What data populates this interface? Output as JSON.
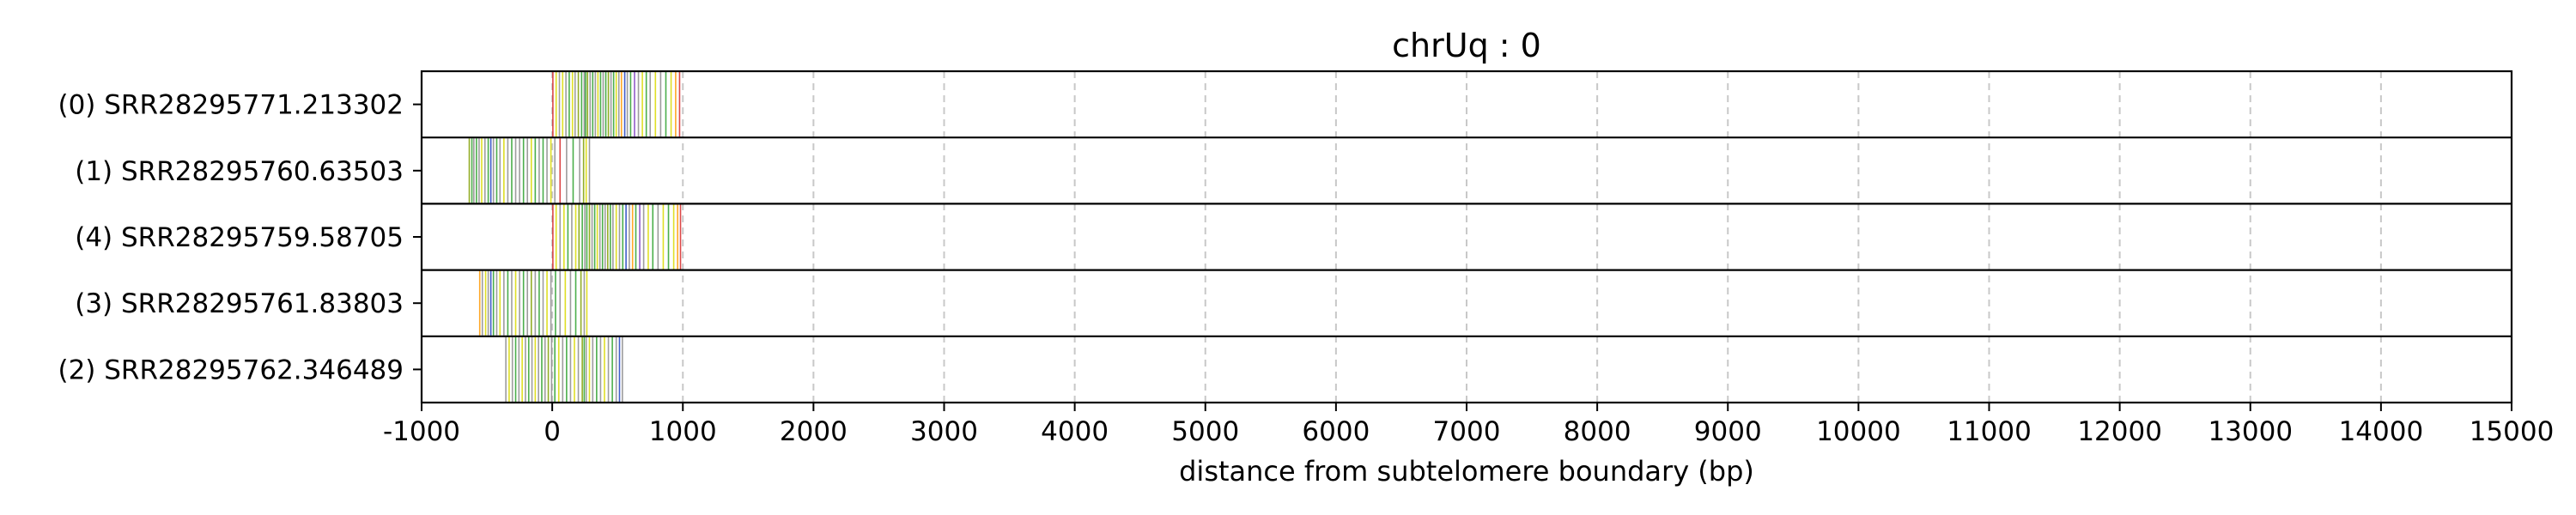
{
  "chart_data": {
    "type": "read-track-plot",
    "title": "chrUq : 0",
    "xlabel": "distance from subtelomere boundary (bp)",
    "ylabel": "",
    "xlim": [
      -1000,
      15000
    ],
    "x_ticks": [
      -1000,
      0,
      1000,
      2000,
      3000,
      4000,
      5000,
      6000,
      7000,
      8000,
      9000,
      10000,
      11000,
      12000,
      13000,
      14000,
      15000
    ],
    "grid": "vertical-dashed",
    "colors": {
      "gray": "#8c8c8c",
      "green": "#2ca02c",
      "olive": "#7f9f00",
      "yellow": "#d9d900",
      "blue": "#1f3fbf",
      "red": "#d62728",
      "orange": "#ff9900",
      "purple": "#7f3fbf",
      "grid": "#c8c8c8"
    },
    "tracks": [
      {
        "label": "(0) SRR28295771.213302",
        "start": 0,
        "end": 980,
        "marks": [
          {
            "x": 5,
            "c": "red"
          },
          {
            "x": 30,
            "c": "yellow"
          },
          {
            "x": 55,
            "c": "gray"
          },
          {
            "x": 80,
            "c": "yellow"
          },
          {
            "x": 105,
            "c": "gray"
          },
          {
            "x": 130,
            "c": "green"
          },
          {
            "x": 155,
            "c": "yellow"
          },
          {
            "x": 175,
            "c": "gray"
          },
          {
            "x": 200,
            "c": "olive"
          },
          {
            "x": 225,
            "c": "green"
          },
          {
            "x": 245,
            "c": "gray"
          },
          {
            "x": 255,
            "c": "green"
          },
          {
            "x": 270,
            "c": "olive"
          },
          {
            "x": 290,
            "c": "gray"
          },
          {
            "x": 310,
            "c": "green"
          },
          {
            "x": 330,
            "c": "gray"
          },
          {
            "x": 350,
            "c": "yellow"
          },
          {
            "x": 370,
            "c": "green"
          },
          {
            "x": 390,
            "c": "gray"
          },
          {
            "x": 410,
            "c": "green"
          },
          {
            "x": 430,
            "c": "olive"
          },
          {
            "x": 450,
            "c": "gray"
          },
          {
            "x": 470,
            "c": "green"
          },
          {
            "x": 490,
            "c": "yellow"
          },
          {
            "x": 510,
            "c": "gray"
          },
          {
            "x": 530,
            "c": "orange"
          },
          {
            "x": 555,
            "c": "blue"
          },
          {
            "x": 575,
            "c": "gray"
          },
          {
            "x": 600,
            "c": "green"
          },
          {
            "x": 630,
            "c": "purple"
          },
          {
            "x": 660,
            "c": "gray"
          },
          {
            "x": 690,
            "c": "yellow"
          },
          {
            "x": 720,
            "c": "green"
          },
          {
            "x": 750,
            "c": "gray"
          },
          {
            "x": 790,
            "c": "yellow"
          },
          {
            "x": 830,
            "c": "gray"
          },
          {
            "x": 870,
            "c": "green"
          },
          {
            "x": 910,
            "c": "yellow"
          },
          {
            "x": 945,
            "c": "orange"
          },
          {
            "x": 975,
            "c": "red"
          }
        ]
      },
      {
        "label": "(1) SRR28295760.63503",
        "start": -640,
        "end": 290,
        "marks": [
          {
            "x": -635,
            "c": "olive"
          },
          {
            "x": -615,
            "c": "green"
          },
          {
            "x": -600,
            "c": "gray"
          },
          {
            "x": -580,
            "c": "green"
          },
          {
            "x": -560,
            "c": "gray"
          },
          {
            "x": -540,
            "c": "yellow"
          },
          {
            "x": -515,
            "c": "gray"
          },
          {
            "x": -490,
            "c": "green"
          },
          {
            "x": -470,
            "c": "blue"
          },
          {
            "x": -450,
            "c": "gray"
          },
          {
            "x": -425,
            "c": "green"
          },
          {
            "x": -400,
            "c": "gray"
          },
          {
            "x": -370,
            "c": "yellow"
          },
          {
            "x": -340,
            "c": "gray"
          },
          {
            "x": -310,
            "c": "green"
          },
          {
            "x": -280,
            "c": "gray"
          },
          {
            "x": -250,
            "c": "gray"
          },
          {
            "x": -220,
            "c": "green"
          },
          {
            "x": -190,
            "c": "gray"
          },
          {
            "x": -160,
            "c": "yellow"
          },
          {
            "x": -130,
            "c": "green"
          },
          {
            "x": -100,
            "c": "gray"
          },
          {
            "x": -70,
            "c": "green"
          },
          {
            "x": -40,
            "c": "gray"
          },
          {
            "x": -10,
            "c": "yellow"
          },
          {
            "x": 20,
            "c": "gray"
          },
          {
            "x": 60,
            "c": "red"
          },
          {
            "x": 110,
            "c": "gray"
          },
          {
            "x": 160,
            "c": "green"
          },
          {
            "x": 210,
            "c": "gray"
          },
          {
            "x": 240,
            "c": "olive"
          },
          {
            "x": 260,
            "c": "yellow"
          },
          {
            "x": 285,
            "c": "gray"
          }
        ]
      },
      {
        "label": "(4) SRR28295759.58705",
        "start": 0,
        "end": 985,
        "marks": [
          {
            "x": 5,
            "c": "red"
          },
          {
            "x": 30,
            "c": "yellow"
          },
          {
            "x": 60,
            "c": "gray"
          },
          {
            "x": 90,
            "c": "yellow"
          },
          {
            "x": 120,
            "c": "green"
          },
          {
            "x": 150,
            "c": "gray"
          },
          {
            "x": 180,
            "c": "yellow"
          },
          {
            "x": 205,
            "c": "olive"
          },
          {
            "x": 230,
            "c": "green"
          },
          {
            "x": 250,
            "c": "gray"
          },
          {
            "x": 265,
            "c": "green"
          },
          {
            "x": 285,
            "c": "olive"
          },
          {
            "x": 305,
            "c": "gray"
          },
          {
            "x": 325,
            "c": "green"
          },
          {
            "x": 345,
            "c": "yellow"
          },
          {
            "x": 365,
            "c": "gray"
          },
          {
            "x": 385,
            "c": "green"
          },
          {
            "x": 405,
            "c": "gray"
          },
          {
            "x": 425,
            "c": "olive"
          },
          {
            "x": 445,
            "c": "green"
          },
          {
            "x": 465,
            "c": "gray"
          },
          {
            "x": 490,
            "c": "yellow"
          },
          {
            "x": 515,
            "c": "gray"
          },
          {
            "x": 540,
            "c": "green"
          },
          {
            "x": 565,
            "c": "blue"
          },
          {
            "x": 590,
            "c": "gray"
          },
          {
            "x": 615,
            "c": "orange"
          },
          {
            "x": 640,
            "c": "green"
          },
          {
            "x": 670,
            "c": "purple"
          },
          {
            "x": 700,
            "c": "gray"
          },
          {
            "x": 735,
            "c": "yellow"
          },
          {
            "x": 770,
            "c": "green"
          },
          {
            "x": 810,
            "c": "gray"
          },
          {
            "x": 850,
            "c": "yellow"
          },
          {
            "x": 890,
            "c": "green"
          },
          {
            "x": 930,
            "c": "yellow"
          },
          {
            "x": 960,
            "c": "orange"
          },
          {
            "x": 982,
            "c": "red"
          }
        ]
      },
      {
        "label": "(3) SRR28295761.83803",
        "start": -560,
        "end": 270,
        "marks": [
          {
            "x": -555,
            "c": "orange"
          },
          {
            "x": -535,
            "c": "gray"
          },
          {
            "x": -510,
            "c": "yellow"
          },
          {
            "x": -490,
            "c": "gray"
          },
          {
            "x": -470,
            "c": "blue"
          },
          {
            "x": -450,
            "c": "green"
          },
          {
            "x": -425,
            "c": "gray"
          },
          {
            "x": -400,
            "c": "yellow"
          },
          {
            "x": -370,
            "c": "gray"
          },
          {
            "x": -340,
            "c": "green"
          },
          {
            "x": -310,
            "c": "gray"
          },
          {
            "x": -280,
            "c": "yellow"
          },
          {
            "x": -250,
            "c": "gray"
          },
          {
            "x": -220,
            "c": "green"
          },
          {
            "x": -190,
            "c": "gray"
          },
          {
            "x": -160,
            "c": "olive"
          },
          {
            "x": -130,
            "c": "gray"
          },
          {
            "x": -100,
            "c": "green"
          },
          {
            "x": -70,
            "c": "gray"
          },
          {
            "x": -40,
            "c": "yellow"
          },
          {
            "x": -10,
            "c": "gray"
          },
          {
            "x": 25,
            "c": "green"
          },
          {
            "x": 60,
            "c": "gray"
          },
          {
            "x": 100,
            "c": "yellow"
          },
          {
            "x": 140,
            "c": "gray"
          },
          {
            "x": 180,
            "c": "green"
          },
          {
            "x": 220,
            "c": "olive"
          },
          {
            "x": 245,
            "c": "gray"
          },
          {
            "x": 265,
            "c": "yellow"
          }
        ]
      },
      {
        "label": "(2) SRR28295762.346489",
        "start": -360,
        "end": 540,
        "marks": [
          {
            "x": -355,
            "c": "gray"
          },
          {
            "x": -330,
            "c": "yellow"
          },
          {
            "x": -305,
            "c": "gray"
          },
          {
            "x": -280,
            "c": "green"
          },
          {
            "x": -255,
            "c": "gray"
          },
          {
            "x": -230,
            "c": "yellow"
          },
          {
            "x": -205,
            "c": "gray"
          },
          {
            "x": -180,
            "c": "green"
          },
          {
            "x": -155,
            "c": "gray"
          },
          {
            "x": -130,
            "c": "yellow"
          },
          {
            "x": -105,
            "c": "gray"
          },
          {
            "x": -80,
            "c": "green"
          },
          {
            "x": -55,
            "c": "gray"
          },
          {
            "x": -30,
            "c": "olive"
          },
          {
            "x": -5,
            "c": "gray"
          },
          {
            "x": 20,
            "c": "green"
          },
          {
            "x": 50,
            "c": "yellow"
          },
          {
            "x": 80,
            "c": "gray"
          },
          {
            "x": 110,
            "c": "green"
          },
          {
            "x": 140,
            "c": "gray"
          },
          {
            "x": 170,
            "c": "yellow"
          },
          {
            "x": 200,
            "c": "gray"
          },
          {
            "x": 230,
            "c": "olive"
          },
          {
            "x": 245,
            "c": "green"
          },
          {
            "x": 260,
            "c": "gray"
          },
          {
            "x": 285,
            "c": "yellow"
          },
          {
            "x": 310,
            "c": "gray"
          },
          {
            "x": 340,
            "c": "green"
          },
          {
            "x": 370,
            "c": "gray"
          },
          {
            "x": 400,
            "c": "yellow"
          },
          {
            "x": 430,
            "c": "gray"
          },
          {
            "x": 460,
            "c": "green"
          },
          {
            "x": 490,
            "c": "gray"
          },
          {
            "x": 515,
            "c": "blue"
          },
          {
            "x": 537,
            "c": "gray"
          }
        ]
      }
    ]
  }
}
